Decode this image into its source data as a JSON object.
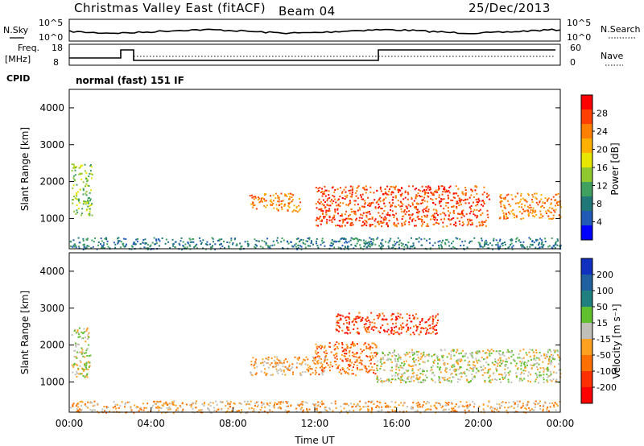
{
  "header": {
    "title": "Christmas Valley East (fitACF)",
    "beam": "Beam 04",
    "date": "25/Dec/2013"
  },
  "top_panels": {
    "nsky_label": "N.Sky",
    "nsearch_label": "N.Search",
    "noise_ticks_left": [
      "10^5",
      "10^0"
    ],
    "noise_ticks_right": [
      "10^5",
      "10^0"
    ],
    "freq_label": "Freq.",
    "freq_unit": "[MHz]",
    "freq_ticks": [
      "18",
      "8"
    ],
    "nave_label": "Nave",
    "nave_ticks": [
      "60",
      "0"
    ],
    "cpid_label": "CPID",
    "cpid_text": "normal (fast) 151 IF"
  },
  "chart_data": [
    {
      "type": "heatmap",
      "panel": "power",
      "ylabel": "Slant Range [km]",
      "xlabel": "",
      "xlim": [
        0,
        24
      ],
      "ylim": [
        180,
        4500
      ],
      "yticks": [
        1000,
        2000,
        3000,
        4000
      ],
      "colorbar_label": "Power [dB]",
      "colorbar_ticks": [
        "28",
        "24",
        "20",
        "16",
        "12",
        "8",
        "4"
      ],
      "colorbar_colors": [
        "#ff0000",
        "#ff4000",
        "#ff8000",
        "#ffb000",
        "#e6e600",
        "#90c830",
        "#40a060",
        "#207878",
        "#205ab4",
        "#0000ff"
      ],
      "features": [
        {
          "t0": 0.1,
          "t1": 1.1,
          "r0": 1100,
          "r1": 2500,
          "level": 16
        },
        {
          "t0": 8.8,
          "t1": 11.3,
          "r0": 1200,
          "r1": 1700,
          "level": 24
        },
        {
          "t0": 12.0,
          "t1": 20.5,
          "r0": 800,
          "r1": 1900,
          "level": 26
        },
        {
          "t0": 21.0,
          "t1": 24.0,
          "r0": 1000,
          "r1": 1700,
          "level": 24
        },
        {
          "t0": 0.0,
          "t1": 24.0,
          "r0": 180,
          "r1": 500,
          "level": 8
        }
      ]
    },
    {
      "type": "heatmap",
      "panel": "velocity",
      "ylabel": "Slant Range [km]",
      "xlabel": "Time UT",
      "xlim": [
        0,
        24
      ],
      "ylim": [
        180,
        4500
      ],
      "yticks": [
        1000,
        2000,
        3000,
        4000
      ],
      "xticks": [
        "00:00",
        "04:00",
        "08:00",
        "12:00",
        "16:00",
        "20:00",
        "00:00"
      ],
      "colorbar_label": "Velocity [m s⁻¹]",
      "colorbar_ticks": [
        "200",
        "100",
        "50",
        "15",
        "-15",
        "-50",
        "-100",
        "-200"
      ],
      "colorbar_colors": [
        "#1030c0",
        "#2060a0",
        "#208080",
        "#60c030",
        "#c0c0b8",
        "#ffa020",
        "#ff7000",
        "#ff3000",
        "#ff0000"
      ],
      "features": [
        {
          "t0": 0.1,
          "t1": 1.0,
          "r0": 1100,
          "r1": 2500,
          "level": 0
        },
        {
          "t0": 8.8,
          "t1": 12.5,
          "r0": 1200,
          "r1": 1700,
          "level": -60
        },
        {
          "t0": 12.0,
          "t1": 15.0,
          "r0": 1200,
          "r1": 2100,
          "level": -80
        },
        {
          "t0": 15.0,
          "t1": 24.0,
          "r0": 1000,
          "r1": 1900,
          "level": 0
        },
        {
          "t0": 13.0,
          "t1": 18.0,
          "r0": 2300,
          "r1": 2900,
          "level": -200
        },
        {
          "t0": 0.0,
          "t1": 24.0,
          "r0": 180,
          "r1": 500,
          "level": -30
        }
      ]
    }
  ]
}
